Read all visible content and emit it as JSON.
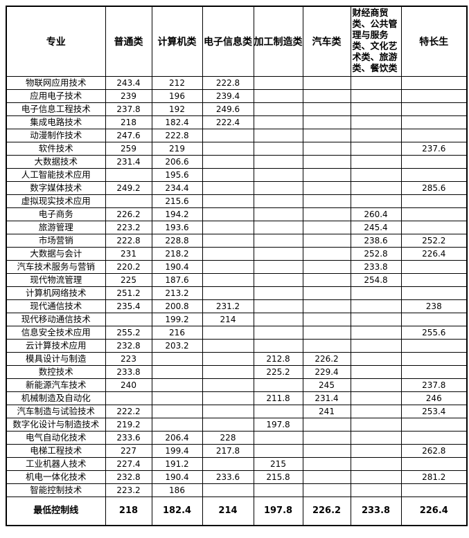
{
  "table": {
    "columns": [
      "专业",
      "普通类",
      "计算机类",
      "电子信息类",
      "加工制造类",
      "汽车类",
      "财经商贸类、公共管理与服务类、文化艺术类、旅游类、餐饮类",
      "特长生"
    ],
    "rows": [
      {
        "major": "物联网应用技术",
        "values": [
          "243.4",
          "212",
          "222.8",
          "",
          "",
          "",
          ""
        ]
      },
      {
        "major": "应用电子技术",
        "values": [
          "239",
          "196",
          "239.4",
          "",
          "",
          "",
          ""
        ]
      },
      {
        "major": "电子信息工程技术",
        "values": [
          "237.8",
          "192",
          "249.6",
          "",
          "",
          "",
          ""
        ]
      },
      {
        "major": "集成电路技术",
        "values": [
          "218",
          "182.4",
          "222.4",
          "",
          "",
          "",
          ""
        ]
      },
      {
        "major": "动漫制作技术",
        "values": [
          "247.6",
          "222.8",
          "",
          "",
          "",
          "",
          ""
        ]
      },
      {
        "major": "软件技术",
        "values": [
          "259",
          "219",
          "",
          "",
          "",
          "",
          "237.6"
        ]
      },
      {
        "major": "大数据技术",
        "values": [
          "231.4",
          "206.6",
          "",
          "",
          "",
          "",
          ""
        ]
      },
      {
        "major": "人工智能技术应用",
        "values": [
          "",
          "195.6",
          "",
          "",
          "",
          "",
          ""
        ]
      },
      {
        "major": "数字媒体技术",
        "values": [
          "249.2",
          "234.4",
          "",
          "",
          "",
          "",
          "285.6"
        ]
      },
      {
        "major": "虚拟现实技术应用",
        "values": [
          "",
          "215.6",
          "",
          "",
          "",
          "",
          ""
        ]
      },
      {
        "major": "电子商务",
        "values": [
          "226.2",
          "194.2",
          "",
          "",
          "",
          "260.4",
          ""
        ]
      },
      {
        "major": "旅游管理",
        "values": [
          "223.2",
          "193.6",
          "",
          "",
          "",
          "245.4",
          ""
        ]
      },
      {
        "major": "市场营销",
        "values": [
          "222.8",
          "228.8",
          "",
          "",
          "",
          "238.6",
          "252.2"
        ]
      },
      {
        "major": "大数据与会计",
        "values": [
          "231",
          "218.2",
          "",
          "",
          "",
          "252.8",
          "226.4"
        ]
      },
      {
        "major": "汽车技术服务与营销",
        "values": [
          "220.2",
          "190.4",
          "",
          "",
          "",
          "233.8",
          ""
        ]
      },
      {
        "major": "现代物流管理",
        "values": [
          "225",
          "187.6",
          "",
          "",
          "",
          "254.8",
          ""
        ]
      },
      {
        "major": "计算机网络技术",
        "values": [
          "251.2",
          "213.2",
          "",
          "",
          "",
          "",
          ""
        ]
      },
      {
        "major": "现代通信技术",
        "values": [
          "235.4",
          "200.8",
          "231.2",
          "",
          "",
          "",
          "238"
        ]
      },
      {
        "major": "现代移动通信技术",
        "values": [
          "",
          "199.2",
          "214",
          "",
          "",
          "",
          ""
        ]
      },
      {
        "major": "信息安全技术应用",
        "values": [
          "255.2",
          "216",
          "",
          "",
          "",
          "",
          "255.6"
        ]
      },
      {
        "major": "云计算技术应用",
        "values": [
          "232.8",
          "203.2",
          "",
          "",
          "",
          "",
          ""
        ]
      },
      {
        "major": "模具设计与制造",
        "values": [
          "223",
          "",
          "",
          "212.8",
          "226.2",
          "",
          ""
        ]
      },
      {
        "major": "数控技术",
        "values": [
          "233.8",
          "",
          "",
          "225.2",
          "229.4",
          "",
          ""
        ]
      },
      {
        "major": "新能源汽车技术",
        "values": [
          "240",
          "",
          "",
          "",
          "245",
          "",
          "237.8"
        ]
      },
      {
        "major": "机械制造及自动化",
        "values": [
          "",
          "",
          "",
          "211.8",
          "231.4",
          "",
          "246"
        ]
      },
      {
        "major": "汽车制造与试验技术",
        "values": [
          "222.2",
          "",
          "",
          "",
          "241",
          "",
          "253.4"
        ]
      },
      {
        "major": "数字化设计与制造技术",
        "values": [
          "219.2",
          "",
          "",
          "197.8",
          "",
          "",
          ""
        ]
      },
      {
        "major": "电气自动化技术",
        "values": [
          "233.6",
          "206.4",
          "228",
          "",
          "",
          "",
          ""
        ]
      },
      {
        "major": "电梯工程技术",
        "values": [
          "227",
          "199.4",
          "217.8",
          "",
          "",
          "",
          "262.8"
        ]
      },
      {
        "major": "工业机器人技术",
        "values": [
          "227.4",
          "191.2",
          "",
          "215",
          "",
          "",
          ""
        ]
      },
      {
        "major": "机电一体化技术",
        "values": [
          "232.8",
          "190.4",
          "233.6",
          "215.8",
          "",
          "",
          "281.2"
        ]
      },
      {
        "major": "智能控制技术",
        "values": [
          "223.2",
          "186",
          "",
          "",
          "",
          "",
          ""
        ]
      }
    ],
    "footer": {
      "label": "最低控制线",
      "values": [
        "218",
        "182.4",
        "214",
        "197.8",
        "226.2",
        "233.8",
        "226.4"
      ]
    },
    "colors": {
      "footer_text": "#FF0000",
      "border": "#000000",
      "text": "#000000",
      "background": "#FFFFFF"
    }
  }
}
